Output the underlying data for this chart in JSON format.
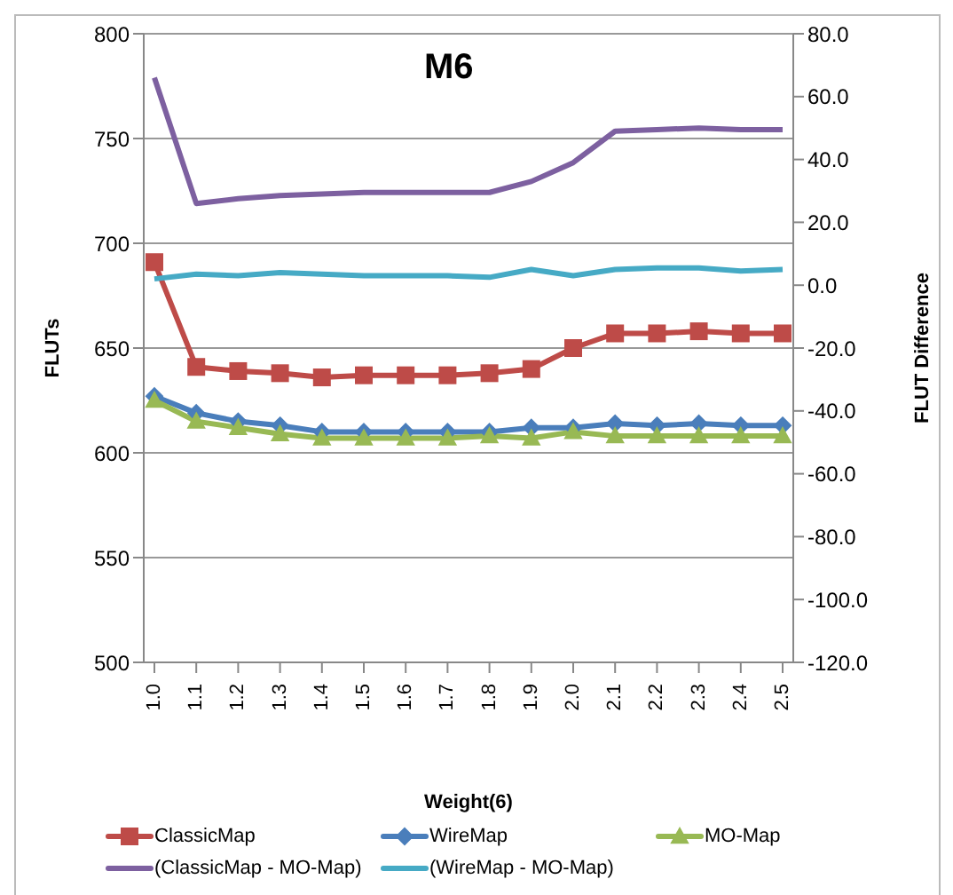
{
  "chart_data": {
    "type": "line",
    "title": "M6",
    "xlabel": "Weight(6)",
    "ylabel": "FLUTs",
    "y2label": "FLUT Difference",
    "categories": [
      "1.0",
      "1.1",
      "1.2",
      "1.3",
      "1.4",
      "1.5",
      "1.6",
      "1.7",
      "1.8",
      "1.9",
      "2.0",
      "2.1",
      "2.2",
      "2.3",
      "2.4",
      "2.5"
    ],
    "series": [
      {
        "name": "ClassicMap",
        "color": "#be4b48",
        "marker": "square",
        "values": [
          691,
          641,
          639,
          638,
          636,
          637,
          637,
          637,
          638,
          640,
          650,
          657,
          657,
          658,
          657,
          657
        ]
      },
      {
        "name": "WireMap",
        "color": "#4a7ebb",
        "marker": "diamond",
        "values": [
          627,
          619,
          615,
          613,
          610,
          610,
          610,
          610,
          610,
          612,
          612,
          614,
          613,
          614,
          613,
          613
        ]
      },
      {
        "name": "MO-Map",
        "color": "#98b954",
        "marker": "triangle",
        "values": [
          625,
          615,
          612,
          609,
          607,
          607,
          607,
          607,
          608,
          607,
          610,
          608,
          608,
          608,
          608,
          608
        ]
      },
      {
        "name": "(ClassicMap - MO-Map)",
        "color": "#7d60a0",
        "marker": "none",
        "axis": "y2",
        "values": [
          66,
          26,
          27.5,
          28.5,
          29,
          29.5,
          29.5,
          29.5,
          29.5,
          33,
          39,
          49,
          49.5,
          50,
          49.5,
          49.5
        ]
      },
      {
        "name": "(WireMap - MO-Map)",
        "color": "#46aac5",
        "marker": "none",
        "axis": "y2",
        "values": [
          2,
          3.5,
          3,
          4,
          3.5,
          3,
          3,
          3,
          2.5,
          5,
          3,
          5,
          5.5,
          5.5,
          4.5,
          5
        ]
      }
    ],
    "ylim": [
      500,
      800
    ],
    "yticks": [
      500,
      550,
      600,
      650,
      700,
      750,
      800
    ],
    "y2lim": [
      -120,
      80
    ],
    "y2ticks": [
      {
        "value": -120,
        "label": "-120.0"
      },
      {
        "value": -100,
        "label": "-100.0"
      },
      {
        "value": -80,
        "label": "-80.0"
      },
      {
        "value": -60,
        "label": "-60.0"
      },
      {
        "value": -40,
        "label": "-40.0"
      },
      {
        "value": -20,
        "label": "-20.0"
      },
      {
        "value": 0,
        "label": "0.0"
      },
      {
        "value": 20,
        "label": "20.0"
      },
      {
        "value": 40,
        "label": "40.0"
      },
      {
        "value": 60,
        "label": "60.0"
      },
      {
        "value": 80,
        "label": "80.0"
      }
    ],
    "grid": "y",
    "legend": "bottom",
    "line_style": "solid"
  }
}
